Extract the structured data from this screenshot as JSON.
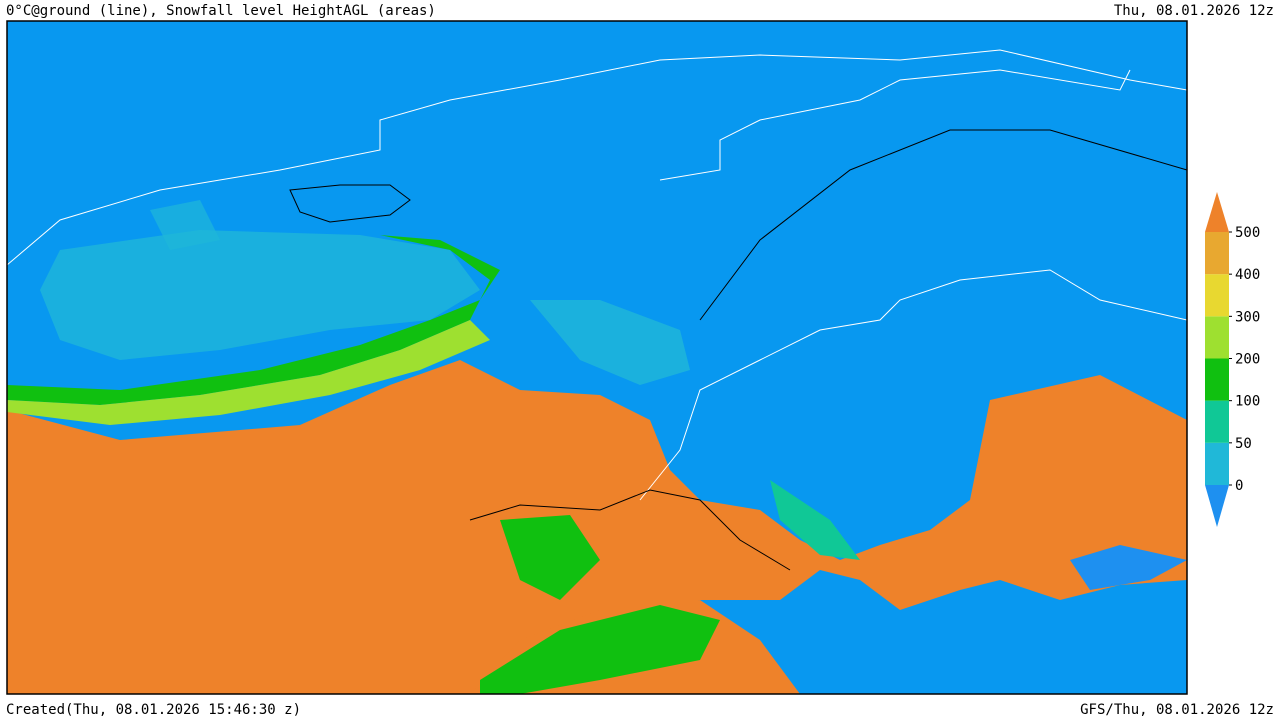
{
  "header": {
    "title": "0°C@ground (line), Snowfall level HeightAGL (areas)",
    "date": "Thu, 08.01.2026 12z"
  },
  "legend": {
    "ticks": [
      0,
      50,
      100,
      200,
      300,
      400,
      500
    ],
    "colors": [
      "#1e90f0",
      "#20b8d8",
      "#10c896",
      "#10c010",
      "#9ee030",
      "#e8d830",
      "#e8a830",
      "#ee822a"
    ]
  },
  "footer": {
    "created": "Created(Thu, 08.01.2026 15:46:30 z)",
    "source": "GFS/Thu, 08.01.2026 12z"
  }
}
